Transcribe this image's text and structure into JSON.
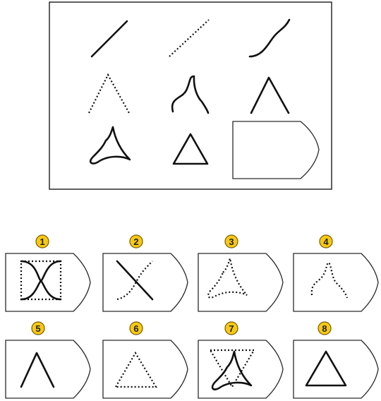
{
  "options": [
    {
      "number": "1"
    },
    {
      "number": "2"
    },
    {
      "number": "3"
    },
    {
      "number": "4"
    },
    {
      "number": "5"
    },
    {
      "number": "6"
    },
    {
      "number": "7"
    },
    {
      "number": "8"
    }
  ]
}
